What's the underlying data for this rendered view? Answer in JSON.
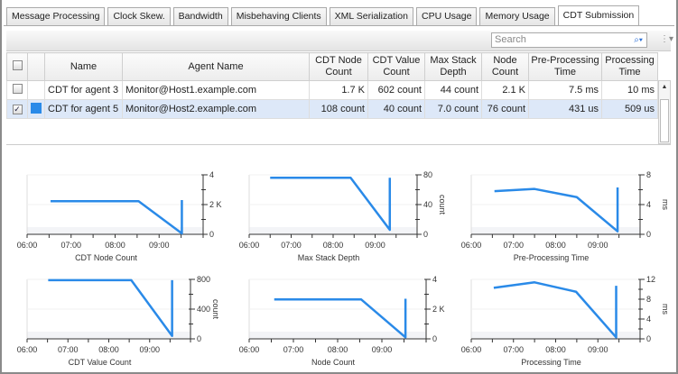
{
  "tabs": [
    "Message Processing",
    "Clock Skew.",
    "Bandwidth",
    "Misbehaving Clients",
    "XML Serialization",
    "CPU Usage",
    "Memory Usage",
    "CDT Submission"
  ],
  "active_tab": "CDT Submission",
  "search": {
    "placeholder": "Search",
    "icon": "magnifier-icon"
  },
  "table": {
    "columns": [
      "",
      "",
      "Name",
      "Agent Name",
      "CDT Node Count",
      "CDT Value Count",
      "Max Stack Depth",
      "Node Count",
      "Pre-Processing Time",
      "Processing Time"
    ],
    "rows": [
      {
        "checked": false,
        "color": "",
        "name": "CDT for agent 3",
        "agent": "Monitor@Host1.example.com",
        "cdt_node_count": "1.7 K",
        "cdt_value_count": "602 count",
        "max_stack_depth": "44 count",
        "node_count": "2.1 K",
        "pre_processing_time": "7.5 ms",
        "processing_time": "10 ms"
      },
      {
        "checked": true,
        "color": "#2a8ae8",
        "name": "CDT for agent 5",
        "agent": "Monitor@Host2.example.com",
        "cdt_node_count": "108 count",
        "cdt_value_count": "40 count",
        "max_stack_depth": "7.0 count",
        "node_count": "76 count",
        "pre_processing_time": "431 us",
        "processing_time": "509 us"
      }
    ]
  },
  "colors": {
    "series": "#2a8ae8"
  },
  "chart_data": [
    {
      "type": "line",
      "title": "CDT Node Count",
      "ylabel": "",
      "ylim": [
        0,
        4000
      ],
      "yticks": [
        "0",
        "2 K",
        "4"
      ],
      "xticks": [
        "06:00",
        "07:00",
        "08:00",
        "09:00"
      ],
      "xlim": [
        "06:00",
        "10:00"
      ],
      "x": [
        "06:32",
        "08:32",
        "09:31",
        "09:31"
      ],
      "values": [
        2230,
        2230,
        60,
        2300
      ]
    },
    {
      "type": "line",
      "title": "Max Stack Depth",
      "ylabel": "count",
      "ylim": [
        0,
        80
      ],
      "yticks": [
        "0",
        "40",
        "80"
      ],
      "xticks": [
        "06:00",
        "07:00",
        "08:00",
        "09:00"
      ],
      "xlim": [
        "06:00",
        "10:00"
      ],
      "x": [
        "06:30",
        "08:25",
        "09:21",
        "09:21"
      ],
      "values": [
        76,
        76,
        6,
        76
      ]
    },
    {
      "type": "line",
      "title": "Pre-Processing Time",
      "ylabel": "ms",
      "ylim": [
        0,
        8
      ],
      "yticks": [
        "0",
        "4",
        "8"
      ],
      "xticks": [
        "06:00",
        "07:00",
        "08:00",
        "09:00"
      ],
      "xlim": [
        "06:00",
        "10:00"
      ],
      "x": [
        "06:33",
        "07:30",
        "08:30",
        "09:28",
        "09:28"
      ],
      "values": [
        5.8,
        6.1,
        5.0,
        0.4,
        6.3
      ]
    },
    {
      "type": "line",
      "title": "CDT Value Count",
      "ylabel": "count",
      "ylim": [
        0,
        800
      ],
      "yticks": [
        "0",
        "400",
        "800"
      ],
      "xticks": [
        "06:00",
        "07:00",
        "08:00",
        "09:00"
      ],
      "xlim": [
        "06:00",
        "10:00"
      ],
      "x": [
        "06:31",
        "08:33",
        "09:33",
        "09:33"
      ],
      "values": [
        790,
        790,
        40,
        790
      ]
    },
    {
      "type": "line",
      "title": "Node Count",
      "ylabel": "",
      "ylim": [
        0,
        4000
      ],
      "yticks": [
        "0",
        "2 K",
        "4"
      ],
      "xticks": [
        "06:00",
        "07:00",
        "08:00",
        "09:00"
      ],
      "xlim": [
        "06:00",
        "10:00"
      ],
      "x": [
        "06:34",
        "08:32",
        "09:32",
        "09:32"
      ],
      "values": [
        2650,
        2650,
        100,
        2700
      ]
    },
    {
      "type": "line",
      "title": "Processing Time",
      "ylabel": "ms",
      "ylim": [
        0,
        12
      ],
      "yticks": [
        "0",
        "4",
        "8",
        "12"
      ],
      "xticks": [
        "06:00",
        "07:00",
        "08:00",
        "09:00"
      ],
      "xlim": [
        "06:00",
        "10:00"
      ],
      "x": [
        "06:32",
        "07:30",
        "08:29",
        "09:26",
        "09:26"
      ],
      "values": [
        10.3,
        11.4,
        9.5,
        0.3,
        10.7
      ]
    }
  ]
}
